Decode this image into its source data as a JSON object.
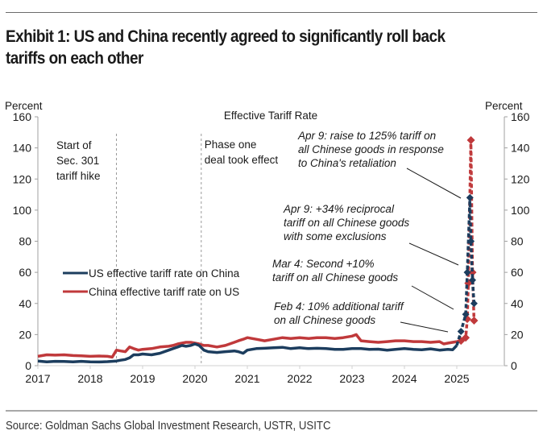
{
  "title": "Exhibit 1: US and China recently agreed to significantly roll back tariffs on each other",
  "title_lines": [
    "Exhibit 1: US and China recently agreed to significantly roll back",
    "tariffs on each other"
  ],
  "source": "Source: Goldman Sachs Global Investment Research, USTR, USITC",
  "chart_data": {
    "type": "line",
    "title": "Effective Tariff Rate",
    "ylabel_left": "Percent",
    "ylabel_right": "Percent",
    "xlabel": "",
    "xlim": [
      2017,
      2025.95
    ],
    "ylim": [
      0,
      160
    ],
    "yticks": [
      0,
      20,
      40,
      60,
      80,
      100,
      120,
      140,
      160
    ],
    "xticks": [
      2017,
      2018,
      2019,
      2020,
      2021,
      2022,
      2023,
      2024,
      2025
    ],
    "xtick_labels": [
      "2017",
      "2018",
      "2019",
      "2020",
      "2021",
      "2022",
      "2023",
      "2024",
      "2025"
    ],
    "grid": false,
    "legend": {
      "placement": "center-left",
      "entries": [
        "US effective tariff rate on China",
        "China effective tariff rate on US"
      ]
    },
    "colors": {
      "us": "#1c3d5e",
      "china": "#c0393b"
    },
    "vlines": [
      {
        "x": 2018.5,
        "label": [
          "Start of",
          "Sec. 301",
          "tariff hike"
        ]
      },
      {
        "x": 2020.12,
        "label": [
          "Phase one",
          "deal took effect"
        ]
      }
    ],
    "annotations": [
      {
        "text": [
          "Apr 9: raise to 125% tariff on",
          "all Chinese goods in response",
          "to China's retaliation"
        ],
        "target": [
          2025.27,
          108
        ]
      },
      {
        "text": [
          "Apr 9: +34% reciprocal",
          "tariff on all Chinese goods",
          "with some exclusions"
        ],
        "target": [
          2025.25,
          60
        ]
      },
      {
        "text": [
          "Mar 4: Second +10%",
          "tariff on all Chinese goods"
        ],
        "target": [
          2025.17,
          33
        ]
      },
      {
        "text": [
          "Feb 4: 10% additional tariff",
          "on all Chinese goods"
        ],
        "target": [
          2025.08,
          22
        ]
      }
    ],
    "series": [
      {
        "name": "US effective tariff rate on China",
        "x": [
          2017.0,
          2017.17,
          2017.33,
          2017.5,
          2017.67,
          2017.83,
          2018.0,
          2018.17,
          2018.33,
          2018.5,
          2018.58,
          2018.67,
          2018.75,
          2018.83,
          2018.92,
          2019.0,
          2019.17,
          2019.33,
          2019.5,
          2019.58,
          2019.67,
          2019.75,
          2019.83,
          2019.92,
          2020.0,
          2020.08,
          2020.17,
          2020.25,
          2020.42,
          2020.58,
          2020.75,
          2020.83,
          2020.92,
          2021.0,
          2021.17,
          2021.33,
          2021.5,
          2021.67,
          2021.83,
          2022.0,
          2022.17,
          2022.33,
          2022.5,
          2022.67,
          2022.83,
          2023.0,
          2023.17,
          2023.33,
          2023.5,
          2023.67,
          2023.83,
          2024.0,
          2024.17,
          2024.33,
          2024.5,
          2024.67,
          2024.83,
          2024.92,
          2025.0,
          2025.08,
          2025.17,
          2025.2,
          2025.25,
          2025.27,
          2025.3,
          2025.33
        ],
        "values": [
          3,
          2.5,
          2.8,
          2.7,
          2.5,
          2.8,
          2.5,
          2.4,
          2.6,
          3,
          3.5,
          4,
          5,
          7,
          7,
          7.5,
          7,
          8,
          10,
          11,
          12,
          13,
          12.5,
          13,
          14,
          13,
          10,
          9,
          8.5,
          9,
          9.5,
          9,
          8,
          10,
          11,
          11.2,
          11.5,
          11.8,
          11,
          11.5,
          11,
          11.2,
          11,
          10.5,
          10.5,
          11,
          11,
          10.5,
          10.6,
          10,
          10.5,
          11,
          10.5,
          10.2,
          10.8,
          10,
          10.5,
          10.2,
          13,
          22,
          33,
          60,
          108,
          80,
          55,
          40
        ]
      },
      {
        "name": "China effective tariff rate on US",
        "x": [
          2017.0,
          2017.17,
          2017.33,
          2017.5,
          2017.67,
          2017.83,
          2018.0,
          2018.17,
          2018.33,
          2018.42,
          2018.5,
          2018.58,
          2018.67,
          2018.75,
          2018.83,
          2018.92,
          2019.0,
          2019.17,
          2019.33,
          2019.5,
          2019.58,
          2019.67,
          2019.75,
          2019.83,
          2019.92,
          2020.0,
          2020.08,
          2020.17,
          2020.25,
          2020.42,
          2020.58,
          2020.75,
          2020.83,
          2020.92,
          2021.0,
          2021.17,
          2021.33,
          2021.5,
          2021.67,
          2021.83,
          2022.0,
          2022.17,
          2022.33,
          2022.5,
          2022.67,
          2022.83,
          2023.0,
          2023.08,
          2023.17,
          2023.33,
          2023.5,
          2023.67,
          2023.83,
          2024.0,
          2024.17,
          2024.33,
          2024.5,
          2024.67,
          2024.75,
          2024.83,
          2024.92,
          2025.0,
          2025.08,
          2025.17,
          2025.2,
          2025.22,
          2025.27,
          2025.3,
          2025.33
        ],
        "values": [
          6,
          7,
          6.8,
          7,
          6.5,
          6.3,
          6,
          6.2,
          6,
          5.5,
          10,
          9.5,
          9,
          12,
          11,
          10,
          10.5,
          11,
          12,
          12.5,
          13,
          14,
          14.5,
          15,
          15,
          14.5,
          14,
          13,
          13,
          12,
          13,
          15,
          16,
          17,
          18,
          17,
          16,
          17,
          18,
          17.5,
          18,
          17.5,
          18,
          18,
          17.5,
          18,
          19,
          20,
          16,
          15.5,
          15,
          15.5,
          16,
          16,
          15.5,
          15.5,
          15,
          15.5,
          14,
          14.5,
          15,
          15.5,
          16,
          18,
          30,
          53,
          145,
          60,
          29
        ]
      }
    ]
  }
}
